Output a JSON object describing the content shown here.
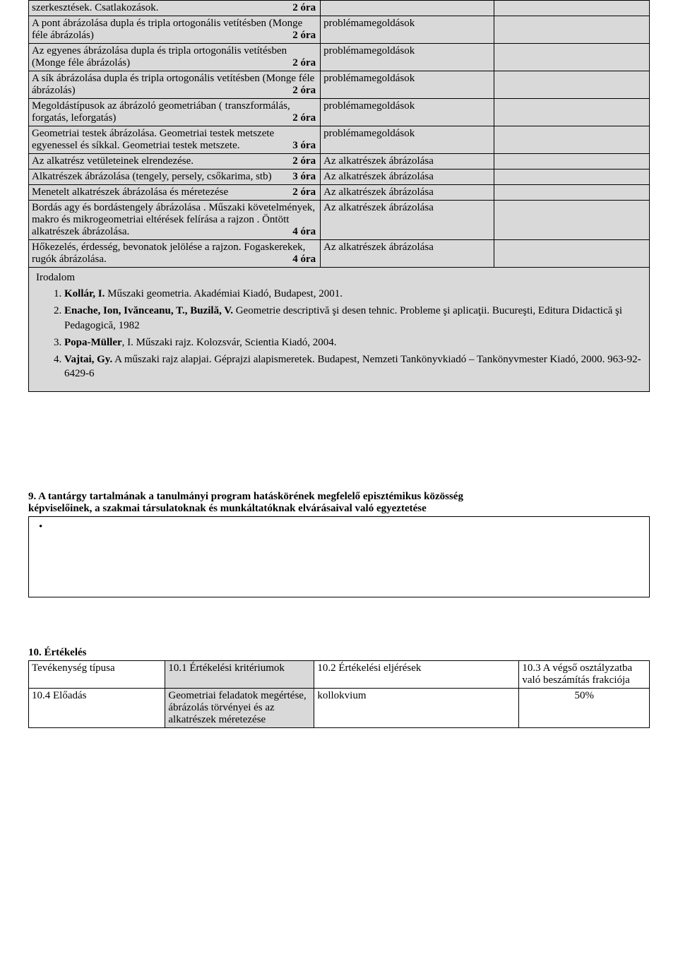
{
  "table": {
    "rows": [
      {
        "left": "szerkesztések. Csatlakozások.",
        "hours": "2 óra",
        "mid": "",
        "right": ""
      },
      {
        "left": "A pont ábrázolása dupla és tripla ortogonális vetítésben (Monge féle ábrázolás)",
        "hours": "2 óra",
        "mid": "problémamegoldások",
        "right": ""
      },
      {
        "left": "Az egyenes ábrázolása dupla és tripla ortogonális vetítésben (Monge féle ábrázolás)",
        "hours": "2 óra",
        "mid": "problémamegoldások",
        "right": ""
      },
      {
        "left": "A sík ábrázolása dupla és tripla ortogonális vetítésben (Monge féle ábrázolás)",
        "hours": "2 óra",
        "mid": "problémamegoldások",
        "right": ""
      },
      {
        "left": "Megoldástípusok az ábrázoló geometriában ( transzformálás, forgatás, leforgatás)",
        "hours": "2 óra",
        "mid": "problémamegoldások",
        "right": ""
      },
      {
        "left": "Geometriai testek ábrázolása. Geometriai testek metszete egyenessel és síkkal. Geometriai testek metszete.",
        "hours": "3 óra",
        "mid": "problémamegoldások",
        "right": ""
      },
      {
        "left": "Az alkatrész vetületeinek elrendezése.",
        "hours": "2 óra",
        "mid": "Az alkatrészek ábrázolása",
        "right": ""
      },
      {
        "left": "Alkatrészek ábrázolása  (tengely, persely, csőkarima, stb)",
        "hours": "3 óra",
        "mid": "Az alkatrészek ábrázolása",
        "right": ""
      },
      {
        "left": "Menetelt alkatrészek ábrázolása és méretezése",
        "hours": "2 óra",
        "mid": "Az alkatrészek ábrázolása",
        "right": ""
      },
      {
        "left": "Bordás agy és bordástengely ábrázolása . Műszaki követelmények, makro és mikrogeometriai eltérések felírása a rajzon . Öntött alkatrészek ábrázolása.",
        "hours": "4 óra",
        "mid": "Az alkatrészek ábrázolása",
        "right": ""
      },
      {
        "left": "Hőkezelés, érdesség, bevonatok jelölése a rajzon. Fogaskerekek, rugók ábrázolása.",
        "hours": "4 óra",
        "mid": "Az alkatrészek ábrázolása",
        "right": ""
      }
    ],
    "literature_label": "Irodalom",
    "lit": [
      {
        "bold": "Kollár, I.",
        "rest": " Műszaki geometria. Akadémiai Kiadó, Budapest, 2001."
      },
      {
        "bold": "Enache, Ion, Ivănceanu, T., Buzilă, V.",
        "rest": " Geometrie descriptivă şi desen tehnic. Probleme şi aplicaţii. Bucureşti, Editura Didactică şi Pedagogică, 1982"
      },
      {
        "bold": "Popa-Müller",
        "rest": ", I. Műszaki rajz. Kolozsvár, Scientia Kiadó, 2004."
      },
      {
        "bold": "Vajtai, Gy.",
        "rest": " A műszaki rajz alapjai. Géprajzi alapismeretek. Budapest, Nemzeti Tankönyvkiadó – Tankönyvmester Kiadó, 2000. 963-92-6429-6"
      }
    ]
  },
  "sec9_title_line1": "9. A tantárgy tartalmának a tanulmányi program hatáskörének megfelelő episztémikus közösség",
  "sec9_title_line2": "képviselőinek, a szakmai társulatoknak és munkáltatóknak elvárásaival való egyeztetése",
  "sec9_bullet": "•",
  "sec10_title": "10. Értékelés",
  "t10": {
    "h1": "Tevékenység típusa",
    "h2": "10.1 Értékelési kritériumok",
    "h3": "10.2 Értékelési eljérések",
    "h4": "10.3 A végső osztályzatba való beszámítás frakciója",
    "r1c1": "10.4 Előadás",
    "r1c2": "Geometriai feladatok megértése, ábrázolás törvényei és az alkatrészek méretezése",
    "r1c3": "kollokvium",
    "r1c4": "50%"
  }
}
